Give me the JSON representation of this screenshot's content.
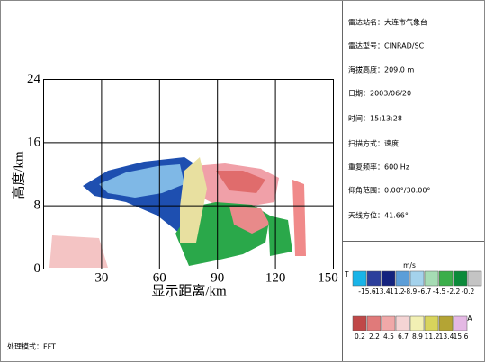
{
  "plot": {
    "x_ticks": [
      30,
      60,
      90,
      120,
      150
    ],
    "y_ticks": [
      0,
      8,
      16,
      24
    ],
    "x_label": "显示距离/km",
    "y_label": "高度/km",
    "x_end_mark": "T"
  },
  "info": [
    "雷达站名：大连市气象台",
    "雷达型号：CINRAD/SC",
    "海拔高度：209.0 m",
    "日期：2003/06/20",
    "时间：15:13:28",
    "扫描方式：速度",
    "重复频率：600 Hz",
    "仰角范围：0.00°/30.00°",
    "天线方位：41.66°"
  ],
  "velocity_legend": {
    "unit": "m/s",
    "colors": [
      "#19b4e8",
      "#2c3f9c",
      "#14237e",
      "#5c9ed8",
      "#a4d2ec",
      "#a6dcb4",
      "#3aae4a",
      "#0b8a3a",
      "#c4c4c4"
    ],
    "labels": [
      "-15.6",
      "-13.4",
      "-11.2",
      "-8.9",
      "-6.7",
      "-4.5",
      "-2.2",
      "-0.2"
    ]
  },
  "reflectivity_legend": {
    "unit": "A",
    "colors": [
      "#c04848",
      "#e07a7a",
      "#f0a8a8",
      "#f4d4d4",
      "#f2f0b4",
      "#d8d45c",
      "#b4a434",
      "#e4b8e4"
    ],
    "labels": [
      "0.2",
      "2.2",
      "4.5",
      "6.7",
      "8.9",
      "11.2",
      "13.4",
      "15.6"
    ]
  },
  "footer": "处理模式：FFT"
}
